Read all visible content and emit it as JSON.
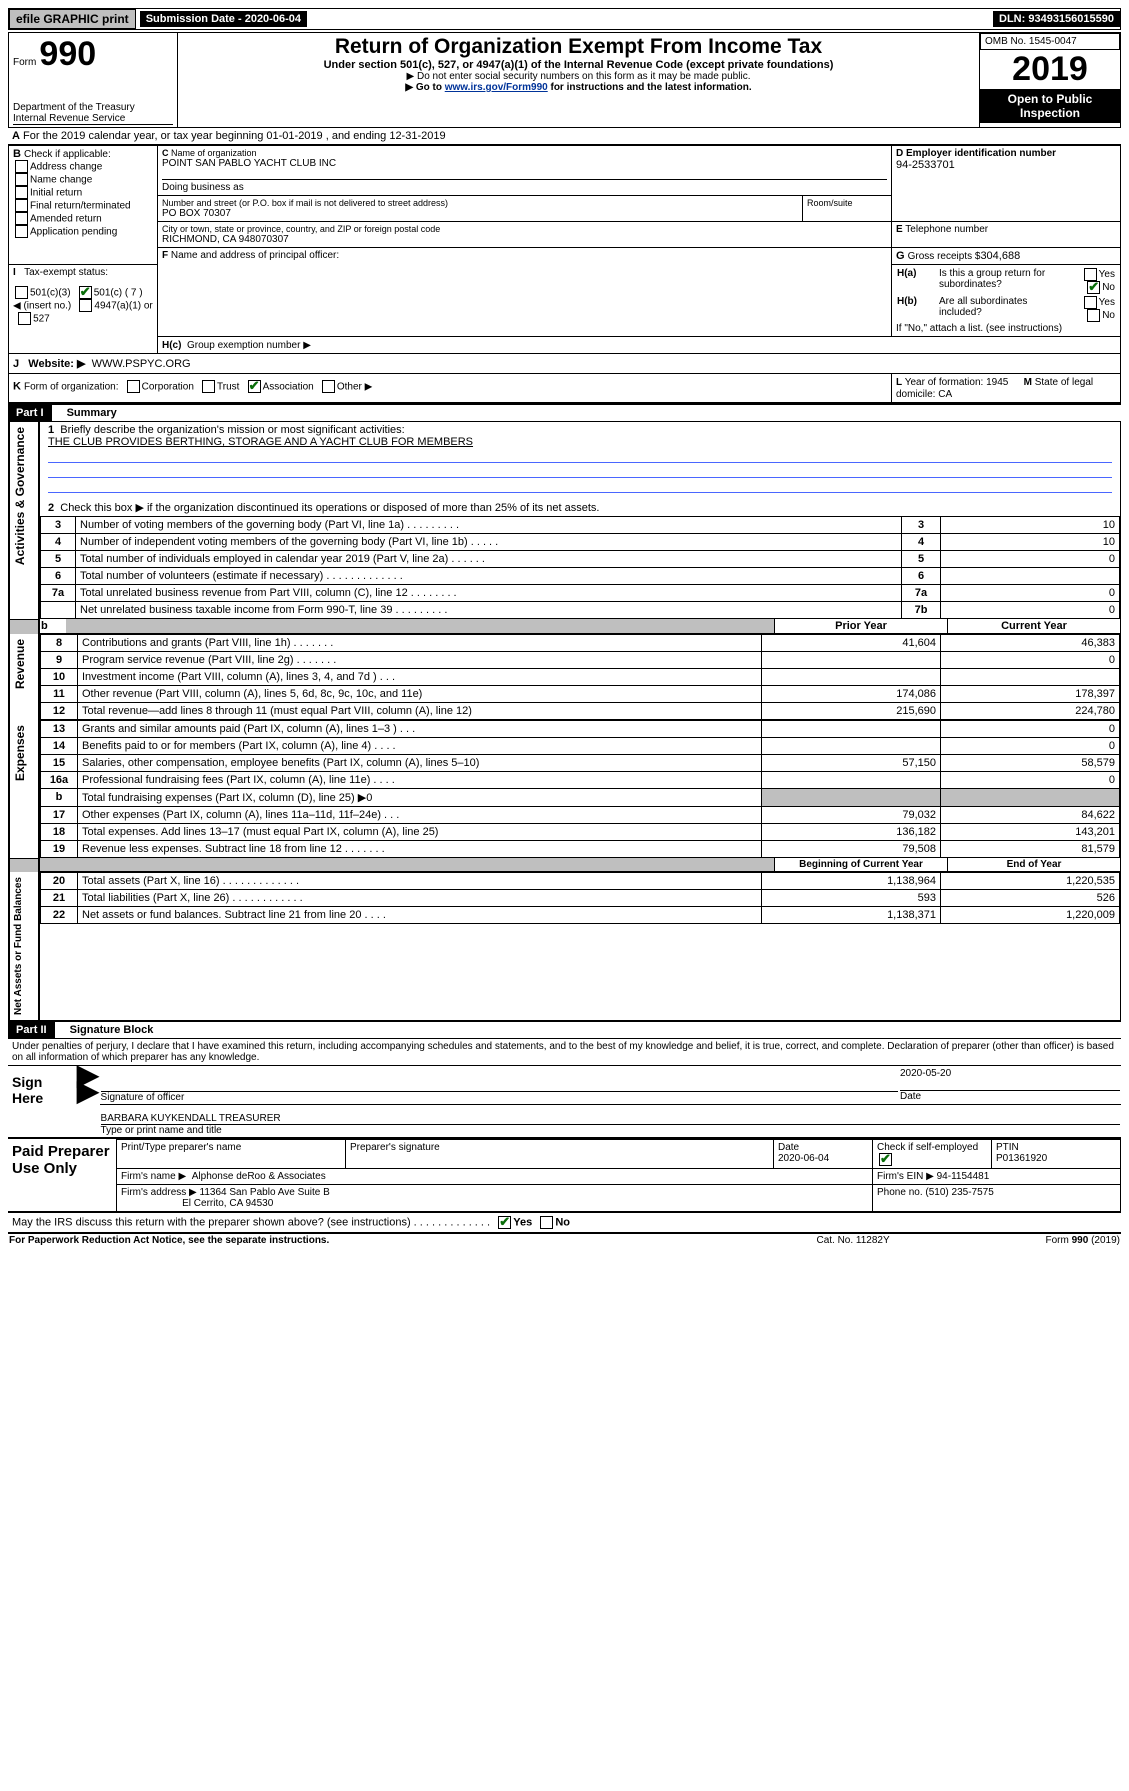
{
  "topbar": {
    "efile": "efile GRAPHIC print",
    "sub_label": "Submission Date - 2020-06-04",
    "dln_label": "DLN: 93493156015590"
  },
  "header": {
    "form_word": "Form",
    "form_no": "990",
    "dept": "Department of the Treasury",
    "irs": "Internal Revenue Service",
    "title": "Return of Organization Exempt From Income Tax",
    "sub1": "Under section 501(c), 527, or 4947(a)(1) of the Internal Revenue Code (except private foundations)",
    "sub2": "Do not enter social security numbers on this form as it may be made public.",
    "sub3_a": "Go to ",
    "sub3_link": "www.irs.gov/Form990",
    "sub3_b": " for instructions and the latest information.",
    "omb": "OMB No. 1545-0047",
    "year": "2019",
    "open": "Open to Public Inspection"
  },
  "A": {
    "text": "For the 2019 calendar year, or tax year beginning 01-01-2019    , and ending 12-31-2019"
  },
  "B": {
    "hdr": "Check if applicable:",
    "items": [
      "Address change",
      "Name change",
      "Initial return",
      "Final return/terminated",
      "Amended return",
      "Application pending"
    ]
  },
  "C": {
    "name_label": "Name of organization",
    "name": "POINT SAN PABLO YACHT CLUB INC",
    "dba": "Doing business as",
    "addr_label": "Number and street (or P.O. box if mail is not delivered to street address)",
    "room": "Room/suite",
    "addr": "PO BOX 70307",
    "city_label": "City or town, state or province, country, and ZIP or foreign postal code",
    "city": "RICHMOND, CA  948070307"
  },
  "D": {
    "label": "Employer identification number",
    "val": "94-2533701"
  },
  "E": {
    "label": "Telephone number"
  },
  "G": {
    "label": "Gross receipts $",
    "val": "304,688"
  },
  "F": {
    "label": "Name and address of principal officer:"
  },
  "H": {
    "a": "Is this a group return for subordinates?",
    "b": "Are all subordinates included?",
    "bnote": "If \"No,\" attach a list. (see instructions)",
    "c": "Group exemption number ▶",
    "yes": "Yes",
    "no": "No"
  },
  "I": {
    "label": "Tax-exempt status:",
    "c3": "501(c)(3)",
    "c": "501(c) ( 7 ) ◀ (insert no.)",
    "a1": "4947(a)(1) or",
    "527": "527"
  },
  "J": {
    "label": "Website: ▶",
    "val": "WWW.PSPYC.ORG"
  },
  "K": {
    "label": "Form of organization:",
    "corp": "Corporation",
    "trust": "Trust",
    "assoc": "Association",
    "other": "Other ▶"
  },
  "L": {
    "label": "Year of formation:",
    "val": "1945"
  },
  "M": {
    "label": "State of legal domicile:",
    "val": "CA"
  },
  "parts": {
    "p1": "Part I",
    "p1t": "Summary",
    "p2": "Part II",
    "p2t": "Signature Block"
  },
  "summary": {
    "l1": "Briefly describe the organization's mission or most significant activities:",
    "l1v": "THE CLUB PROVIDES BERTHING, STORAGE AND A YACHT CLUB FOR MEMBERS",
    "l2": "Check this box ▶          if the organization discontinued its operations or disposed of more than 25% of its net assets.",
    "rows": [
      {
        "n": "3",
        "t": "Number of voting members of the governing body (Part VI, line 1a)   .    .    .    .    .    .    .    .    .",
        "c": "3",
        "v": "10"
      },
      {
        "n": "4",
        "t": "Number of independent voting members of the governing body (Part VI, line 1b)   .    .    .    .    .",
        "c": "4",
        "v": "10"
      },
      {
        "n": "5",
        "t": "Total number of individuals employed in calendar year 2019 (Part V, line 2a)    .    .    .    .    .    .",
        "c": "5",
        "v": "0"
      },
      {
        "n": "6",
        "t": "Total number of volunteers (estimate if necessary)    .    .    .    .    .    .    .    .    .    .    .    .    .",
        "c": "6",
        "v": ""
      },
      {
        "n": "7a",
        "t": "Total unrelated business revenue from Part VIII, column (C), line 12   .    .    .    .    .    .    .    .",
        "c": "7a",
        "v": "0"
      },
      {
        "n": "",
        "t": "Net unrelated business taxable income from Form 990-T, line 39    .    .    .    .    .    .    .    .    .",
        "c": "7b",
        "v": "0"
      }
    ],
    "pyh": "Prior Year",
    "cyh": "Current Year",
    "rev": [
      {
        "n": "8",
        "t": "Contributions and grants (Part VIII, line 1h)   .    .    .    .    .    .    .",
        "p": "41,604",
        "c": "46,383"
      },
      {
        "n": "9",
        "t": "Program service revenue (Part VIII, line 2g)   .    .    .    .    .    .    .",
        "p": "",
        "c": "0"
      },
      {
        "n": "10",
        "t": "Investment income (Part VIII, column (A), lines 3, 4, and 7d )   .    .    .",
        "p": "",
        "c": ""
      },
      {
        "n": "11",
        "t": "Other revenue (Part VIII, column (A), lines 5, 6d, 8c, 9c, 10c, and 11e)",
        "p": "174,086",
        "c": "178,397"
      },
      {
        "n": "12",
        "t": "Total revenue—add lines 8 through 11 (must equal Part VIII, column (A), line 12)",
        "p": "215,690",
        "c": "224,780"
      }
    ],
    "exp": [
      {
        "n": "13",
        "t": "Grants and similar amounts paid (Part IX, column (A), lines 1–3 )   .    .    .",
        "p": "",
        "c": "0"
      },
      {
        "n": "14",
        "t": "Benefits paid to or for members (Part IX, column (A), line 4)   .    .    .    .",
        "p": "",
        "c": "0"
      },
      {
        "n": "15",
        "t": "Salaries, other compensation, employee benefits (Part IX, column (A), lines 5–10)",
        "p": "57,150",
        "c": "58,579"
      },
      {
        "n": "16a",
        "t": "Professional fundraising fees (Part IX, column (A), line 11e)   .    .    .    .",
        "p": "",
        "c": "0"
      },
      {
        "n": "b",
        "t": "Total fundraising expenses (Part IX, column (D), line 25) ▶0",
        "p": "shade",
        "c": "shade"
      },
      {
        "n": "17",
        "t": "Other expenses (Part IX, column (A), lines 11a–11d, 11f–24e)   .    .    .",
        "p": "79,032",
        "c": "84,622"
      },
      {
        "n": "18",
        "t": "Total expenses. Add lines 13–17 (must equal Part IX, column (A), line 25)",
        "p": "136,182",
        "c": "143,201"
      },
      {
        "n": "19",
        "t": "Revenue less expenses. Subtract line 18 from line 12   .    .    .    .    .    .    .",
        "p": "79,508",
        "c": "81,579"
      }
    ],
    "bch": "Beginning of Current Year",
    "ech": "End of Year",
    "na": [
      {
        "n": "20",
        "t": "Total assets (Part X, line 16)   .    .    .    .    .    .    .    .    .    .    .    .    .",
        "p": "1,138,964",
        "c": "1,220,535"
      },
      {
        "n": "21",
        "t": "Total liabilities (Part X, line 26)   .    .    .    .    .    .    .    .    .    .    .    .",
        "p": "593",
        "c": "526"
      },
      {
        "n": "22",
        "t": "Net assets or fund balances. Subtract line 21 from line 20   .    .    .    .",
        "p": "1,138,371",
        "c": "1,220,009"
      }
    ],
    "side": {
      "ag": "Activities & Governance",
      "rev": "Revenue",
      "exp": "Expenses",
      "na": "Net Assets or Fund Balances"
    }
  },
  "sig": {
    "perjury": "Under penalties of perjury, I declare that I have examined this return, including accompanying schedules and statements, and to the best of my knowledge and belief, it is true, correct, and complete. Declaration of preparer (other than officer) is based on all information of which preparer has any knowledge.",
    "sign_here": "Sign Here",
    "sig_officer": "Signature of officer",
    "date1": "2020-05-20",
    "date_l": "Date",
    "name": "BARBARA KUYKENDALL  TREASURER",
    "name_l": "Type or print name and title",
    "paid": "Paid Preparer Use Only",
    "pp_name_l": "Print/Type preparer's name",
    "pp_sig_l": "Preparer's signature",
    "pp_date": "2020-06-04",
    "self": "Check          if self-employed",
    "ptin_l": "PTIN",
    "ptin": "P01361920",
    "firm_l": "Firm's name   ▶",
    "firm": "Alphonse deRoo & Associates",
    "ein_l": "Firm's EIN ▶",
    "ein": "94-1154481",
    "addr_l": "Firm's address ▶",
    "addr1": "11364 San Pablo Ave Suite B",
    "addr2": "El Cerrito, CA  94530",
    "phone_l": "Phone no.",
    "phone": "(510) 235-7575",
    "discuss": "May the IRS discuss this return with the preparer shown above? (see instructions)    .    .    .    .    .    .    .    .    .    .    .    .    .",
    "pra": "For Paperwork Reduction Act Notice, see the separate instructions.",
    "cat": "Cat. No. 11282Y",
    "formno": "Form 990 (2019)"
  }
}
